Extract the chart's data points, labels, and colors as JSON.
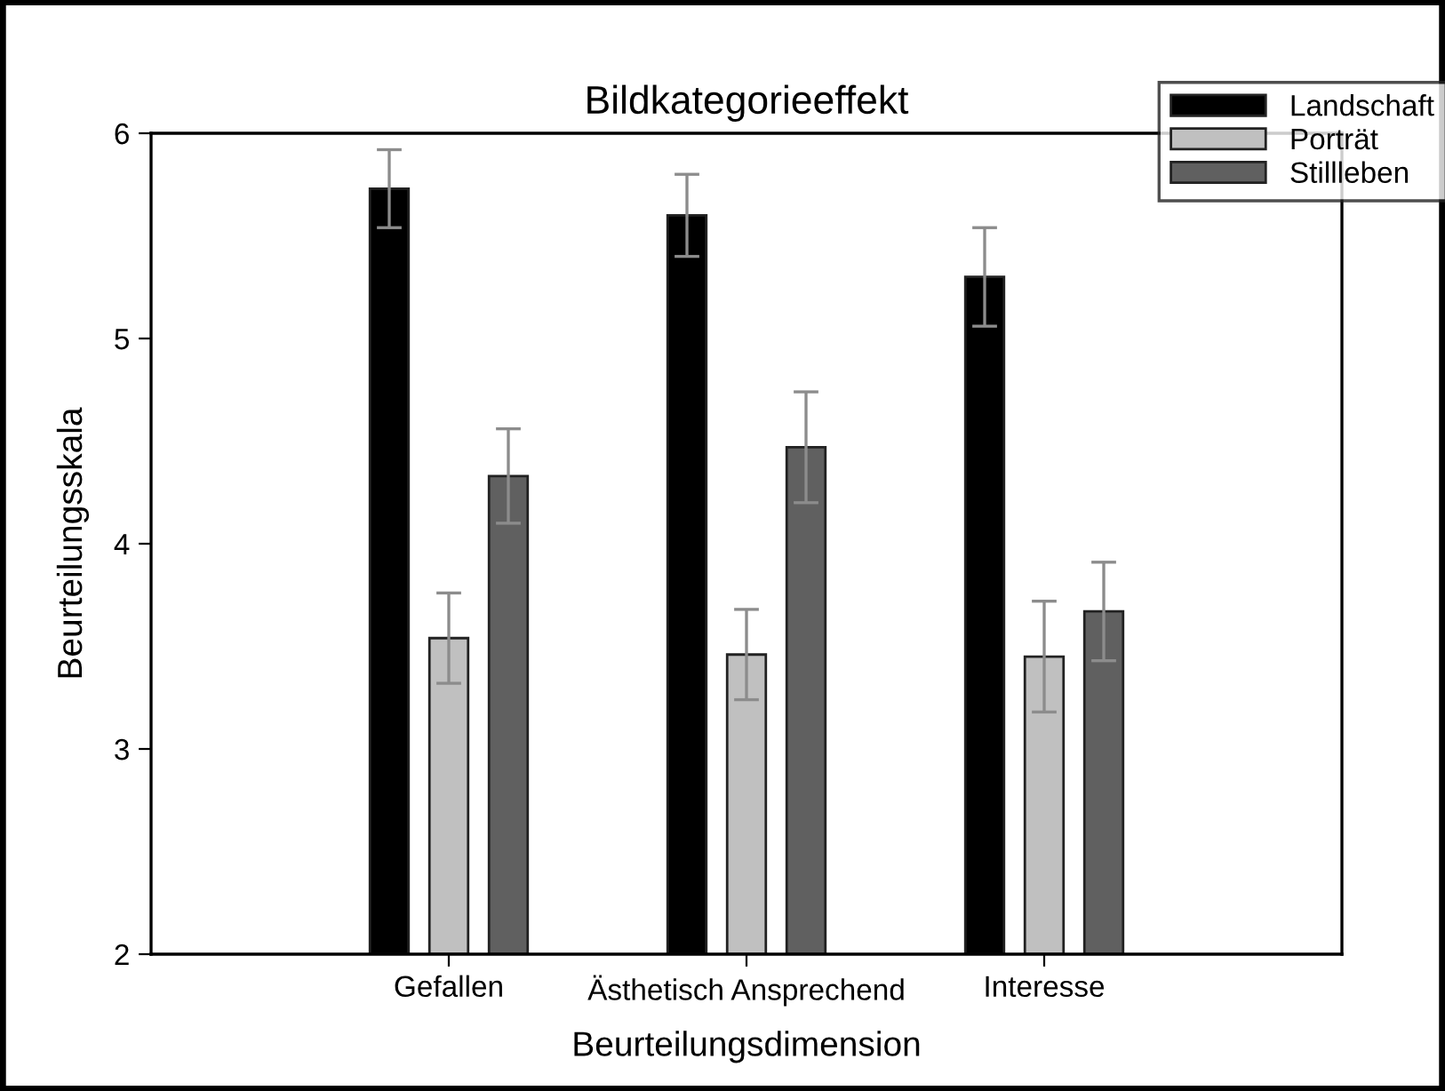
{
  "chart_data": {
    "type": "bar",
    "title": "Bildkategorieeffekt",
    "xlabel": "Beurteilungsdimension",
    "ylabel": "Beurteilungsskala",
    "categories": [
      "Gefallen",
      "Ästhetisch Ansprechend",
      "Interesse"
    ],
    "series": [
      {
        "name": "Landschaft",
        "color": "#000000",
        "values": [
          5.73,
          5.6,
          5.3
        ],
        "errors": [
          0.19,
          0.2,
          0.24
        ]
      },
      {
        "name": "Porträt",
        "color": "#c0c0c0",
        "values": [
          3.54,
          3.46,
          3.45
        ],
        "errors": [
          0.22,
          0.22,
          0.27
        ]
      },
      {
        "name": "Stillleben",
        "color": "#606060",
        "values": [
          4.33,
          4.47,
          3.67
        ],
        "errors": [
          0.23,
          0.27,
          0.24
        ]
      }
    ],
    "ylim": [
      2,
      6
    ],
    "yticks": [
      2,
      3,
      4,
      5,
      6
    ],
    "grid": false,
    "legend": "top right"
  }
}
